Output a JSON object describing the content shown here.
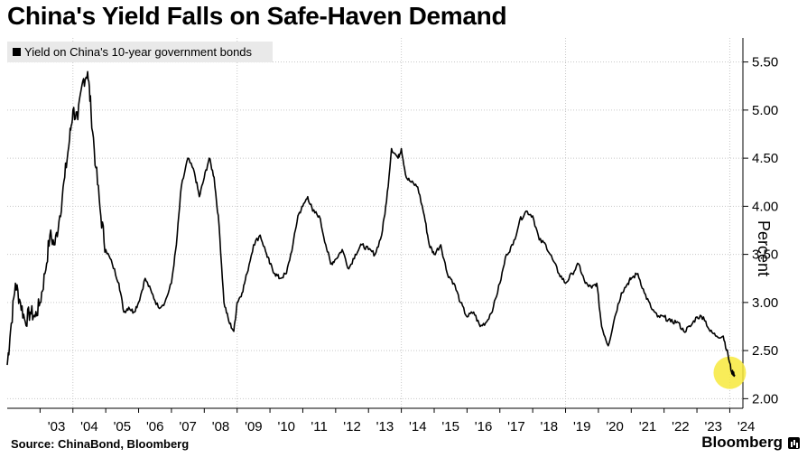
{
  "title": "China's Yield Falls on Safe-Haven Demand",
  "source": "Source: ChinaBond, Bloomberg",
  "brand": "Bloomberg",
  "chart_data": {
    "type": "line",
    "ylabel": "Percent",
    "ylim": [
      1.9,
      5.75
    ],
    "yticks": [
      2.0,
      2.5,
      3.0,
      3.5,
      4.0,
      4.5,
      5.0,
      5.5
    ],
    "ytick_labels": [
      "2.00",
      "2.50",
      "3.00",
      "3.50",
      "4.00",
      "4.50",
      "5.00",
      "5.50"
    ],
    "xlim": [
      2002.0,
      2024.4
    ],
    "xtick_labels": [
      "'03",
      "'04",
      "'05",
      "'06",
      "'07",
      "'08",
      "'09",
      "'10",
      "'11",
      "'12",
      "'13",
      "'14",
      "'15",
      "'16",
      "'17",
      "'18",
      "'19",
      "'20",
      "'21",
      "'22",
      "'23",
      "'24"
    ],
    "xgrid_years": [
      2004,
      2009,
      2014,
      2019,
      2024
    ],
    "grid": true,
    "legend": "top-left",
    "highlight": {
      "x": 2024.0,
      "y": 2.27,
      "color": "#f7e93c"
    },
    "series": [
      {
        "name": "Yield on China's 10-year government bonds",
        "color": "#000000",
        "x": [
          2002.0,
          2002.1,
          2002.25,
          2002.4,
          2002.55,
          2002.7,
          2002.85,
          2003.0,
          2003.15,
          2003.3,
          2003.45,
          2003.6,
          2003.75,
          2003.9,
          2004.0,
          2004.15,
          2004.3,
          2004.45,
          2004.55,
          2004.7,
          2004.85,
          2005.0,
          2005.2,
          2005.4,
          2005.55,
          2005.7,
          2005.85,
          2006.0,
          2006.2,
          2006.4,
          2006.6,
          2006.8,
          2007.0,
          2007.15,
          2007.3,
          2007.5,
          2007.7,
          2007.85,
          2008.0,
          2008.15,
          2008.3,
          2008.45,
          2008.6,
          2008.75,
          2008.9,
          2009.0,
          2009.15,
          2009.3,
          2009.5,
          2009.7,
          2009.9,
          2010.0,
          2010.15,
          2010.3,
          2010.5,
          2010.7,
          2010.85,
          2011.0,
          2011.15,
          2011.3,
          2011.5,
          2011.7,
          2011.85,
          2012.0,
          2012.2,
          2012.4,
          2012.6,
          2012.8,
          2013.0,
          2013.2,
          2013.4,
          2013.55,
          2013.7,
          2013.9,
          2014.0,
          2014.15,
          2014.3,
          2014.5,
          2014.7,
          2014.85,
          2015.0,
          2015.2,
          2015.4,
          2015.6,
          2015.8,
          2016.0,
          2016.2,
          2016.4,
          2016.6,
          2016.8,
          2017.0,
          2017.2,
          2017.4,
          2017.6,
          2017.8,
          2018.0,
          2018.2,
          2018.4,
          2018.6,
          2018.8,
          2019.0,
          2019.2,
          2019.4,
          2019.6,
          2019.8,
          2019.95,
          2020.1,
          2020.3,
          2020.5,
          2020.7,
          2020.9,
          2021.0,
          2021.2,
          2021.4,
          2021.6,
          2021.8,
          2022.0,
          2022.2,
          2022.4,
          2022.6,
          2022.8,
          2023.0,
          2023.2,
          2023.4,
          2023.6,
          2023.8,
          2023.95,
          2024.05,
          2024.15
        ],
        "y": [
          2.35,
          2.7,
          3.2,
          3.0,
          2.8,
          2.9,
          2.85,
          3.0,
          3.3,
          3.7,
          3.6,
          3.9,
          4.3,
          4.7,
          5.0,
          4.9,
          5.3,
          5.4,
          5.0,
          4.4,
          3.9,
          3.55,
          3.4,
          3.2,
          2.9,
          2.95,
          2.9,
          3.0,
          3.25,
          3.1,
          2.95,
          3.0,
          3.2,
          3.6,
          4.2,
          4.5,
          4.35,
          4.1,
          4.3,
          4.5,
          4.3,
          3.8,
          3.0,
          2.8,
          2.7,
          3.0,
          3.1,
          3.3,
          3.6,
          3.7,
          3.5,
          3.4,
          3.3,
          3.25,
          3.3,
          3.6,
          3.9,
          4.0,
          4.1,
          3.95,
          3.9,
          3.6,
          3.4,
          3.45,
          3.55,
          3.35,
          3.5,
          3.6,
          3.55,
          3.5,
          3.7,
          4.05,
          4.6,
          4.5,
          4.6,
          4.3,
          4.25,
          4.2,
          3.9,
          3.6,
          3.5,
          3.6,
          3.3,
          3.2,
          3.0,
          2.85,
          2.9,
          2.75,
          2.8,
          2.95,
          3.2,
          3.5,
          3.6,
          3.85,
          3.95,
          3.9,
          3.65,
          3.6,
          3.45,
          3.3,
          3.2,
          3.3,
          3.4,
          3.2,
          3.15,
          3.2,
          2.75,
          2.55,
          2.85,
          3.1,
          3.2,
          3.25,
          3.3,
          3.1,
          2.95,
          2.85,
          2.85,
          2.8,
          2.8,
          2.7,
          2.75,
          2.85,
          2.85,
          2.7,
          2.65,
          2.65,
          2.45,
          2.28,
          2.25
        ]
      }
    ]
  }
}
